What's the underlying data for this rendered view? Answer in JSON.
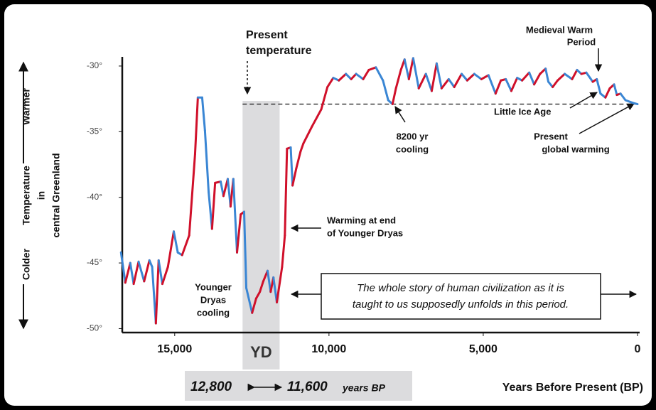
{
  "chart_data": {
    "type": "line",
    "y_label": [
      "Warmer",
      "Temperature",
      "in",
      "central Greenland",
      "Colder"
    ],
    "x_label": "Years Before Present (BP)",
    "rise_color": "#d0102a",
    "fall_color": "#3a86d4",
    "xlim": [
      16700,
      0
    ],
    "ylim": [
      -50.3,
      -29.3
    ],
    "xticks": [
      {
        "value": 15000,
        "label": "15,000"
      },
      {
        "value": 10000,
        "label": "10,000"
      },
      {
        "value": 5000,
        "label": "5,000"
      },
      0
    ],
    "yticks": [
      {
        "value": -30,
        "label": "-30°"
      },
      {
        "value": -35,
        "label": "-35°"
      },
      {
        "value": -40,
        "label": "-40°"
      },
      {
        "value": -45,
        "label": "-45°"
      },
      {
        "value": -50,
        "label": "-50°"
      }
    ],
    "x": [
      16740,
      16600,
      16440,
      16330,
      16170,
      15990,
      15820,
      15730,
      15610,
      15520,
      15400,
      15220,
      15030,
      14900,
      14760,
      14530,
      14340,
      14250,
      14110,
      14020,
      13900,
      13790,
      13690,
      13510,
      13420,
      13280,
      13190,
      13100,
      12980,
      12860,
      12750,
      12680,
      12490,
      12360,
      12240,
      12130,
      11990,
      11890,
      11800,
      11690,
      11520,
      11430,
      11360,
      11240,
      11180,
      11060,
      10920,
      10830,
      10550,
      10250,
      10050,
      9860,
      9680,
      9450,
      9280,
      9120,
      8890,
      8710,
      8480,
      8250,
      8080,
      7940,
      7830,
      7670,
      7550,
      7410,
      7270,
      7090,
      6860,
      6670,
      6510,
      6350,
      6120,
      5940,
      5700,
      5520,
      5290,
      5060,
      4830,
      4600,
      4430,
      4270,
      4090,
      3900,
      3740,
      3510,
      3350,
      3160,
      2980,
      2890,
      2750,
      2590,
      2360,
      2120,
      1960,
      1820,
      1660,
      1450,
      1320,
      1200,
      1040,
      900,
      760,
      670,
      550,
      390,
      160,
      0
    ],
    "values": [
      -44.2,
      -46.5,
      -45.0,
      -46.6,
      -44.9,
      -46.4,
      -44.8,
      -45.3,
      -49.6,
      -44.8,
      -46.6,
      -45.3,
      -42.6,
      -44.2,
      -44.4,
      -42.9,
      -36.7,
      -32.4,
      -32.4,
      -34.9,
      -39.6,
      -42.4,
      -38.9,
      -38.8,
      -39.9,
      -38.6,
      -40.7,
      -38.6,
      -44.2,
      -41.3,
      -41.1,
      -46.9,
      -48.8,
      -47.7,
      -47.2,
      -46.4,
      -45.6,
      -47.2,
      -46.1,
      -48.0,
      -45.3,
      -42.9,
      -36.3,
      -36.2,
      -39.1,
      -37.8,
      -36.5,
      -35.9,
      -34.6,
      -33.3,
      -31.6,
      -30.9,
      -31.1,
      -30.6,
      -31.0,
      -30.6,
      -31.0,
      -30.3,
      -30.1,
      -31.1,
      -32.6,
      -32.9,
      -31.7,
      -30.3,
      -29.5,
      -31.0,
      -29.4,
      -31.7,
      -30.6,
      -31.9,
      -29.8,
      -31.7,
      -31.0,
      -31.6,
      -30.6,
      -31.1,
      -30.6,
      -31.0,
      -30.7,
      -32.1,
      -31.1,
      -31.0,
      -31.9,
      -30.9,
      -31.1,
      -30.5,
      -31.4,
      -30.6,
      -30.2,
      -31.2,
      -31.6,
      -31.1,
      -30.6,
      -31.0,
      -30.3,
      -30.6,
      -30.5,
      -31.2,
      -31.0,
      -32.1,
      -32.4,
      -31.7,
      -31.4,
      -32.2,
      -32.1,
      -32.6,
      -32.8,
      -32.9
    ],
    "present_temperature": {
      "value": -32.9,
      "label": [
        "Present",
        "temperature"
      ]
    },
    "yd_band": {
      "label": "YD",
      "start": {
        "value": 12800,
        "label": "12,800"
      },
      "end": {
        "value": 11600,
        "label": "11,600"
      },
      "unit": "years BP"
    },
    "annotations": {
      "medieval": [
        "Medieval Warm",
        "Period"
      ],
      "little_ice_age": "Little Ice Age",
      "cooling_8200": [
        "8200 yr",
        "cooling"
      ],
      "global_warming": [
        "Present",
        "global warming"
      ],
      "yd_warming": [
        "Warming at end",
        "of Younger Dryas"
      ],
      "yd_cooling": [
        "Younger",
        "Dryas",
        "cooling"
      ],
      "civilization": [
        "The whole story of human civilization as it is",
        "taught to us supposedly unfolds in this period."
      ]
    }
  }
}
